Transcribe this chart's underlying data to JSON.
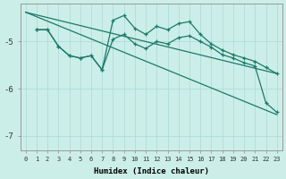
{
  "xlabel": "Humidex (Indice chaleur)",
  "background_color": "#cceee8",
  "grid_color": "#b0ddd8",
  "line_color": "#1a7a6a",
  "x_ticks": [
    0,
    1,
    2,
    3,
    4,
    5,
    6,
    7,
    8,
    9,
    10,
    11,
    12,
    13,
    14,
    15,
    16,
    17,
    18,
    19,
    20,
    21,
    22,
    23
  ],
  "ylim": [
    -7.3,
    -4.2
  ],
  "yticks": [
    -7,
    -6,
    -5
  ],
  "series_zigzag1": {
    "x": [
      1,
      2,
      3,
      4,
      5,
      6,
      7,
      8,
      9,
      10,
      11,
      12,
      13,
      14,
      15,
      16,
      17,
      18,
      19,
      20,
      21,
      22,
      23
    ],
    "y": [
      -4.75,
      -4.75,
      -5.1,
      -5.3,
      -5.35,
      -5.3,
      -5.6,
      -4.95,
      -4.85,
      -5.05,
      -5.15,
      -5.0,
      -5.05,
      -4.92,
      -4.88,
      -5.0,
      -5.12,
      -5.28,
      -5.35,
      -5.45,
      -5.52,
      -6.3,
      -6.5
    ]
  },
  "series_zigzag2": {
    "x": [
      1,
      2,
      3,
      4,
      5,
      6,
      7,
      8,
      9,
      10,
      11,
      12,
      13,
      14,
      15,
      16,
      17,
      18,
      19,
      20,
      21,
      22,
      23
    ],
    "y": [
      -4.75,
      -4.75,
      -5.1,
      -5.3,
      -5.35,
      -5.3,
      -5.6,
      -4.55,
      -4.45,
      -4.72,
      -4.85,
      -4.68,
      -4.75,
      -4.62,
      -4.58,
      -4.85,
      -5.05,
      -5.18,
      -5.28,
      -5.35,
      -5.42,
      -5.55,
      -5.68
    ]
  },
  "line1": {
    "x": [
      0,
      23
    ],
    "y": [
      -4.38,
      -5.68
    ]
  },
  "line2": {
    "x": [
      0,
      23
    ],
    "y": [
      -4.38,
      -6.55
    ]
  }
}
